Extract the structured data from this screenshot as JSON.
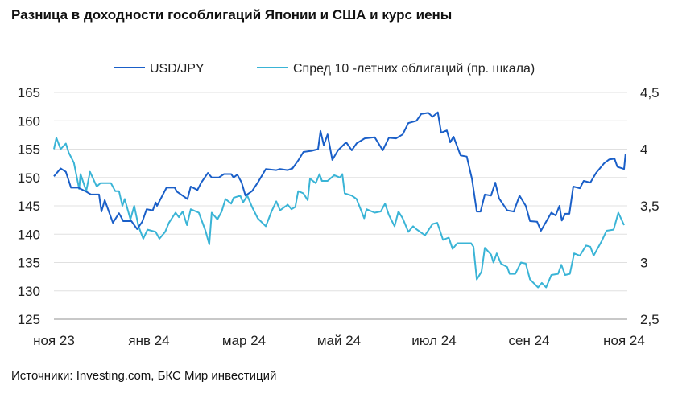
{
  "chart_data": {
    "type": "line",
    "title": "Разница в доходности гособлигаций Японии и США и курс иены",
    "source": "Источники: Investing.com, БКС Мир инвестиций",
    "x_unit": "months since Nov 2023",
    "xlim": [
      0,
      12.05
    ],
    "x_ticks": [
      {
        "value": 0,
        "label": "ноя 23"
      },
      {
        "value": 2,
        "label": "янв 24"
      },
      {
        "value": 4,
        "label": "мар 24"
      },
      {
        "value": 6,
        "label": "май 24"
      },
      {
        "value": 8,
        "label": "июл 24"
      },
      {
        "value": 10,
        "label": "сен 24"
      },
      {
        "value": 12,
        "label": "ноя 24"
      }
    ],
    "y_left": {
      "lim": [
        125,
        165
      ],
      "ticks": [
        "165",
        "160",
        "155",
        "150",
        "145",
        "140",
        "135",
        "130",
        "125"
      ],
      "tick_values": [
        165,
        160,
        155,
        150,
        145,
        140,
        135,
        130,
        125
      ]
    },
    "y_right": {
      "lim": [
        2.5,
        4.5
      ],
      "ticks": [
        "4,5",
        "4",
        "3,5",
        "3",
        "2,5"
      ],
      "tick_values": [
        4.5,
        4,
        3.5,
        3,
        2.5
      ]
    },
    "grid": true,
    "legend_position": "top",
    "series": [
      {
        "name": "USD/JPY",
        "axis": "left",
        "color": "#1a5fc8",
        "points": [
          [
            0,
            150.2
          ],
          [
            0.14,
            151.6
          ],
          [
            0.25,
            151
          ],
          [
            0.36,
            148.2
          ],
          [
            0.51,
            148.2
          ],
          [
            0.68,
            147.5
          ],
          [
            0.78,
            147
          ],
          [
            0.95,
            147
          ],
          [
            1.0,
            144
          ],
          [
            1.07,
            146
          ],
          [
            1.24,
            142
          ],
          [
            1.37,
            143.7
          ],
          [
            1.46,
            142.3
          ],
          [
            1.63,
            142.3
          ],
          [
            1.75,
            140.9
          ],
          [
            1.86,
            142.2
          ],
          [
            1.95,
            144.4
          ],
          [
            2.08,
            144.2
          ],
          [
            2.14,
            145.6
          ],
          [
            2.17,
            145
          ],
          [
            2.37,
            148.2
          ],
          [
            2.54,
            148.2
          ],
          [
            2.59,
            147.5
          ],
          [
            2.81,
            146.2
          ],
          [
            2.88,
            148.4
          ],
          [
            3.02,
            147.8
          ],
          [
            3.1,
            149.1
          ],
          [
            3.24,
            150.8
          ],
          [
            3.32,
            150
          ],
          [
            3.47,
            150
          ],
          [
            3.58,
            150.6
          ],
          [
            3.73,
            150.6
          ],
          [
            3.78,
            150
          ],
          [
            3.86,
            150.5
          ],
          [
            3.95,
            149.1
          ],
          [
            4.03,
            146.8
          ],
          [
            4.17,
            147.6
          ],
          [
            4.29,
            149.1
          ],
          [
            4.46,
            151.5
          ],
          [
            4.68,
            151.3
          ],
          [
            4.76,
            151.5
          ],
          [
            4.92,
            151.3
          ],
          [
            5.02,
            151.6
          ],
          [
            5.14,
            153
          ],
          [
            5.25,
            154.5
          ],
          [
            5.42,
            154.7
          ],
          [
            5.56,
            155
          ],
          [
            5.61,
            158.2
          ],
          [
            5.68,
            155.7
          ],
          [
            5.76,
            157.6
          ],
          [
            5.86,
            153.1
          ],
          [
            5.98,
            154.8
          ],
          [
            6.15,
            156.2
          ],
          [
            6.27,
            154.8
          ],
          [
            6.37,
            156
          ],
          [
            6.54,
            156.9
          ],
          [
            6.75,
            157.1
          ],
          [
            6.92,
            154.8
          ],
          [
            7.05,
            157
          ],
          [
            7.2,
            156.9
          ],
          [
            7.34,
            157.6
          ],
          [
            7.46,
            159.6
          ],
          [
            7.63,
            160
          ],
          [
            7.73,
            161.2
          ],
          [
            7.88,
            161.4
          ],
          [
            7.97,
            160.7
          ],
          [
            8.08,
            161.5
          ],
          [
            8.15,
            157.9
          ],
          [
            8.27,
            158.3
          ],
          [
            8.34,
            156.2
          ],
          [
            8.41,
            157.2
          ],
          [
            8.56,
            153.9
          ],
          [
            8.69,
            153.7
          ],
          [
            8.8,
            149.7
          ],
          [
            8.9,
            144
          ],
          [
            8.98,
            144
          ],
          [
            9.07,
            147
          ],
          [
            9.2,
            146.8
          ],
          [
            9.29,
            149.1
          ],
          [
            9.37,
            146.3
          ],
          [
            9.54,
            144.2
          ],
          [
            9.68,
            144
          ],
          [
            9.8,
            146.8
          ],
          [
            9.93,
            145
          ],
          [
            10.02,
            142.3
          ],
          [
            10.17,
            142.2
          ],
          [
            10.25,
            140.6
          ],
          [
            10.36,
            142.2
          ],
          [
            10.47,
            143.8
          ],
          [
            10.56,
            143.3
          ],
          [
            10.64,
            145
          ],
          [
            10.69,
            142.4
          ],
          [
            10.76,
            143.6
          ],
          [
            10.85,
            143.6
          ],
          [
            10.93,
            148.4
          ],
          [
            11.07,
            148.1
          ],
          [
            11.15,
            149.4
          ],
          [
            11.29,
            149.1
          ],
          [
            11.41,
            150.8
          ],
          [
            11.58,
            152.5
          ],
          [
            11.69,
            153.2
          ],
          [
            11.8,
            153.3
          ],
          [
            11.86,
            151.9
          ],
          [
            12.0,
            151.5
          ],
          [
            12.03,
            154.1
          ]
        ]
      },
      {
        "name": "Спред 10 -летних облигаций (пр. шкала)",
        "axis": "right",
        "color": "#3ab4d6",
        "points": [
          [
            0,
            4.0
          ],
          [
            0.05,
            4.1
          ],
          [
            0.14,
            4.0
          ],
          [
            0.25,
            4.05
          ],
          [
            0.31,
            3.97
          ],
          [
            0.42,
            3.88
          ],
          [
            0.53,
            3.65
          ],
          [
            0.56,
            3.78
          ],
          [
            0.68,
            3.63
          ],
          [
            0.76,
            3.8
          ],
          [
            0.9,
            3.67
          ],
          [
            0.98,
            3.7
          ],
          [
            1.2,
            3.7
          ],
          [
            1.29,
            3.63
          ],
          [
            1.37,
            3.63
          ],
          [
            1.44,
            3.5
          ],
          [
            1.49,
            3.56
          ],
          [
            1.61,
            3.38
          ],
          [
            1.69,
            3.5
          ],
          [
            1.78,
            3.32
          ],
          [
            1.88,
            3.21
          ],
          [
            1.97,
            3.29
          ],
          [
            2.14,
            3.27
          ],
          [
            2.22,
            3.21
          ],
          [
            2.34,
            3.27
          ],
          [
            2.42,
            3.35
          ],
          [
            2.56,
            3.44
          ],
          [
            2.63,
            3.4
          ],
          [
            2.71,
            3.45
          ],
          [
            2.8,
            3.33
          ],
          [
            2.88,
            3.47
          ],
          [
            3.05,
            3.44
          ],
          [
            3.19,
            3.28
          ],
          [
            3.27,
            3.16
          ],
          [
            3.32,
            3.44
          ],
          [
            3.44,
            3.38
          ],
          [
            3.53,
            3.45
          ],
          [
            3.61,
            3.56
          ],
          [
            3.73,
            3.52
          ],
          [
            3.78,
            3.57
          ],
          [
            3.92,
            3.59
          ],
          [
            3.98,
            3.53
          ],
          [
            4.07,
            3.59
          ],
          [
            4.17,
            3.49
          ],
          [
            4.29,
            3.39
          ],
          [
            4.46,
            3.32
          ],
          [
            4.58,
            3.45
          ],
          [
            4.68,
            3.54
          ],
          [
            4.76,
            3.46
          ],
          [
            4.92,
            3.51
          ],
          [
            5.0,
            3.47
          ],
          [
            5.08,
            3.49
          ],
          [
            5.14,
            3.63
          ],
          [
            5.25,
            3.61
          ],
          [
            5.34,
            3.55
          ],
          [
            5.39,
            3.74
          ],
          [
            5.51,
            3.7
          ],
          [
            5.59,
            3.78
          ],
          [
            5.64,
            3.72
          ],
          [
            5.76,
            3.72
          ],
          [
            5.9,
            3.77
          ],
          [
            6.02,
            3.75
          ],
          [
            6.07,
            3.78
          ],
          [
            6.12,
            3.61
          ],
          [
            6.27,
            3.59
          ],
          [
            6.37,
            3.56
          ],
          [
            6.53,
            3.39
          ],
          [
            6.58,
            3.47
          ],
          [
            6.75,
            3.44
          ],
          [
            6.88,
            3.45
          ],
          [
            6.97,
            3.52
          ],
          [
            7.05,
            3.42
          ],
          [
            7.17,
            3.32
          ],
          [
            7.25,
            3.45
          ],
          [
            7.34,
            3.39
          ],
          [
            7.46,
            3.27
          ],
          [
            7.56,
            3.32
          ],
          [
            7.64,
            3.29
          ],
          [
            7.81,
            3.24
          ],
          [
            7.97,
            3.34
          ],
          [
            8.07,
            3.35
          ],
          [
            8.19,
            3.2
          ],
          [
            8.31,
            3.22
          ],
          [
            8.39,
            3.12
          ],
          [
            8.49,
            3.17
          ],
          [
            8.61,
            3.17
          ],
          [
            8.78,
            3.17
          ],
          [
            8.83,
            3.14
          ],
          [
            8.9,
            2.85
          ],
          [
            9.0,
            2.92
          ],
          [
            9.07,
            3.13
          ],
          [
            9.2,
            3.07
          ],
          [
            9.25,
            3.0
          ],
          [
            9.32,
            3.08
          ],
          [
            9.41,
            2.99
          ],
          [
            9.54,
            2.96
          ],
          [
            9.59,
            2.9
          ],
          [
            9.71,
            2.9
          ],
          [
            9.83,
            3.0
          ],
          [
            9.93,
            2.99
          ],
          [
            10.02,
            2.85
          ],
          [
            10.19,
            2.78
          ],
          [
            10.27,
            2.82
          ],
          [
            10.36,
            2.78
          ],
          [
            10.47,
            2.89
          ],
          [
            10.61,
            2.9
          ],
          [
            10.68,
            2.98
          ],
          [
            10.76,
            2.89
          ],
          [
            10.86,
            2.9
          ],
          [
            10.95,
            3.08
          ],
          [
            11.07,
            3.06
          ],
          [
            11.2,
            3.15
          ],
          [
            11.29,
            3.14
          ],
          [
            11.36,
            3.06
          ],
          [
            11.53,
            3.19
          ],
          [
            11.63,
            3.28
          ],
          [
            11.78,
            3.29
          ],
          [
            11.88,
            3.44
          ],
          [
            12.0,
            3.33
          ]
        ]
      }
    ]
  }
}
